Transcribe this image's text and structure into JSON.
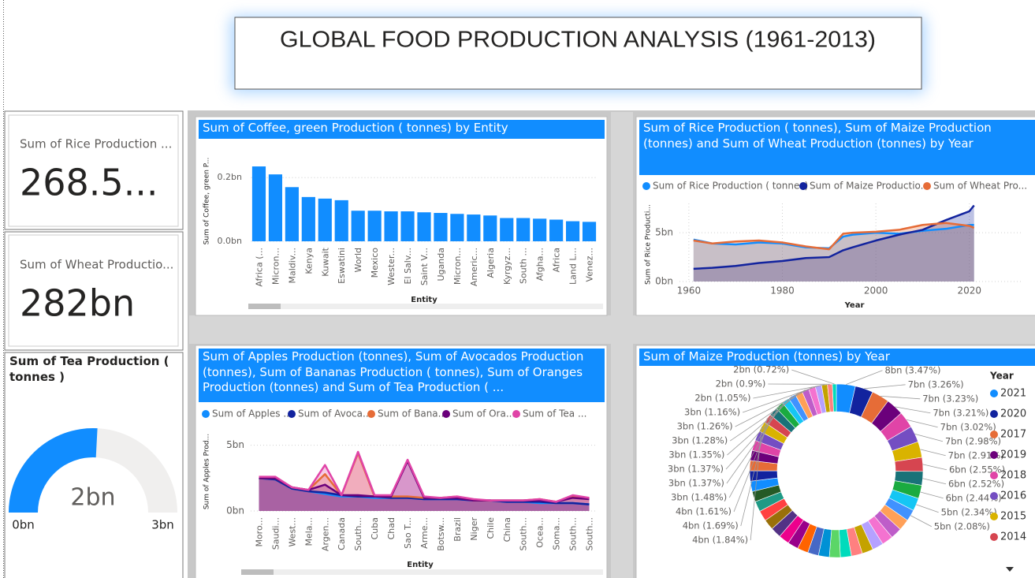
{
  "header": {
    "title": "GLOBAL FOOD PRODUCTION ANALYSIS (1961-2013)"
  },
  "cards": [
    {
      "label": "Sum of Rice Production ...",
      "value": "268.5..."
    },
    {
      "label": "Sum of Wheat Productio...",
      "value": "282bn"
    }
  ],
  "chart_data": [
    {
      "type": "gauge",
      "title": "Sum of Tea Production ( tonnes )",
      "values": [
        1.55
      ],
      "value_labels": [
        "2bn"
      ],
      "ylim": [
        0,
        3
      ],
      "yticks": [
        {
          "value": 0,
          "label": "0bn"
        },
        {
          "value": 3,
          "label": "3bn"
        }
      ],
      "color": "#118dff",
      "track_color": "#f0efee"
    },
    {
      "type": "bar",
      "title": "Sum of Coffee, green Production ( tonnes) by Entity",
      "y_label": "Sum of Coffee, green P...",
      "x_label": "Entity",
      "categories": [
        "Africa (...",
        "Micron...",
        "Maldiv...",
        "Kenya",
        "Kuwait",
        "Eswatini",
        "World",
        "Mexico",
        "Wester...",
        "El Salv...",
        "Saint V...",
        "Uganda",
        "Micron...",
        "Americ...",
        "Algeria",
        "Kyrgyz...",
        "South ...",
        "Afgha...",
        "Africa",
        "Land L...",
        "Venez..."
      ],
      "values": [
        0.235,
        0.21,
        0.17,
        0.139,
        0.134,
        0.129,
        0.096,
        0.096,
        0.094,
        0.094,
        0.091,
        0.089,
        0.086,
        0.084,
        0.081,
        0.073,
        0.073,
        0.071,
        0.068,
        0.063,
        0.061
      ],
      "color": "#118dff",
      "ylim": [
        0,
        0.25
      ],
      "yticks": [
        {
          "value": 0,
          "label": "0.0bn"
        },
        {
          "value": 0.2,
          "label": "0.2bn"
        }
      ],
      "grid": true
    },
    {
      "type": "area",
      "title": "Sum of Rice Production ( tonnes), Sum of Maize Production (tonnes) and Sum of Wheat Production (tonnes) by Year",
      "y_label": "Sum of Rice Producti...",
      "x_label": "Year",
      "x": [
        1961,
        1965,
        1970,
        1975,
        1980,
        1985,
        1990,
        1993,
        1995,
        2000,
        2005,
        2010,
        2015,
        2020,
        2021
      ],
      "series": [
        {
          "name": "Sum of Rice  Production ( tonnes)",
          "color": "#118dff",
          "values": [
            4.3,
            3.9,
            3.8,
            4.0,
            3.9,
            3.5,
            3.4,
            4.6,
            4.8,
            5.0,
            4.9,
            5.2,
            5.4,
            5.8,
            5.8
          ]
        },
        {
          "name": "Sum of Maize Productio...",
          "color": "#12239e",
          "values": [
            1.3,
            1.4,
            1.6,
            1.9,
            2.1,
            2.4,
            2.5,
            3.2,
            3.5,
            4.2,
            4.8,
            5.3,
            6.3,
            7.2,
            7.8
          ]
        },
        {
          "name": "Sum of Wheat Pro...",
          "color": "#e66c37",
          "values": [
            4.2,
            3.9,
            4.1,
            4.2,
            4.0,
            3.6,
            3.3,
            4.9,
            5.0,
            5.1,
            5.3,
            5.8,
            6.0,
            5.7,
            5.5
          ]
        }
      ],
      "xlim": [
        1958,
        2031
      ],
      "xticks": [
        1960,
        1980,
        2000,
        2020
      ],
      "ylim": [
        0,
        8
      ],
      "yticks": [
        {
          "value": 0,
          "label": "0bn"
        },
        {
          "value": 5,
          "label": "5bn"
        }
      ],
      "grid": true
    },
    {
      "type": "area",
      "title": "Sum of Apples Production (tonnes), Sum of Avocados Production (tonnes), Sum of Bananas Production ( tonnes), Sum of Oranges Production (tonnes) and Sum of Tea Production ( ...",
      "y_label": "Sum of Apples Prod...",
      "x_label": "Entity",
      "categories": [
        "Moro...",
        "Saudi...",
        "West...",
        "Mela...",
        "Argen...",
        "Canada",
        "South...",
        "Cuba",
        "Chad",
        "Sao T...",
        "Arme...",
        "Botsw...",
        "Brazil",
        "Niger",
        "Chile",
        "China",
        "South...",
        "Ocea...",
        "Soma...",
        "South...",
        "South..."
      ],
      "series": [
        {
          "name": "Sum of Apples ...",
          "color": "#118dff",
          "values": [
            2.5,
            2.4,
            1.7,
            1.5,
            1.3,
            1.1,
            1.1,
            1.0,
            1.0,
            1.0,
            0.9,
            0.9,
            0.9,
            0.8,
            0.8,
            0.7,
            0.7,
            0.6,
            0.6,
            0.6,
            0.5
          ]
        },
        {
          "name": "Sum of Avoca...",
          "color": "#12239e",
          "values": [
            2.5,
            2.4,
            1.7,
            1.5,
            1.4,
            1.2,
            1.1,
            1.1,
            1.0,
            1.0,
            0.9,
            0.9,
            0.9,
            0.8,
            0.8,
            0.7,
            0.7,
            0.7,
            0.6,
            0.6,
            0.5
          ]
        },
        {
          "name": "Sum of Bana...",
          "color": "#e66c37",
          "values": [
            2.5,
            2.5,
            1.8,
            1.6,
            2.8,
            1.2,
            4.4,
            1.1,
            1.1,
            1.1,
            1.0,
            1.0,
            1.1,
            0.8,
            0.8,
            0.8,
            0.8,
            0.9,
            0.7,
            1.1,
            0.9
          ]
        },
        {
          "name": "Sum of Ora...",
          "color": "#6b007b",
          "values": [
            2.5,
            2.5,
            1.8,
            1.6,
            2.0,
            1.2,
            1.2,
            1.1,
            1.1,
            3.8,
            1.0,
            1.0,
            1.0,
            0.8,
            0.8,
            0.8,
            0.8,
            0.8,
            0.7,
            1.0,
            0.9
          ]
        },
        {
          "name": "Sum of Tea ...",
          "color": "#e044a7",
          "values": [
            2.6,
            2.6,
            1.8,
            1.6,
            3.5,
            1.2,
            4.5,
            1.2,
            1.2,
            3.9,
            1.1,
            1.0,
            1.1,
            0.9,
            0.8,
            0.8,
            0.8,
            0.9,
            0.7,
            1.2,
            1.0
          ]
        }
      ],
      "ylim": [
        0,
        6
      ],
      "yticks": [
        {
          "value": 0,
          "label": "0bn"
        },
        {
          "value": 5,
          "label": "5bn"
        }
      ],
      "grid": true
    },
    {
      "type": "donut",
      "title": "Sum of Maize Production (tonnes) by Year",
      "legend_title": "Year",
      "categories": [
        "2021",
        "2020",
        "2017",
        "2019",
        "2018",
        "2016",
        "2015",
        "2014",
        null,
        null,
        null,
        null,
        null,
        null,
        null,
        null,
        null,
        null,
        null,
        null,
        null,
        null,
        null,
        null,
        null,
        null,
        null,
        null,
        null,
        null,
        null,
        null,
        null,
        null,
        null,
        null,
        null,
        null,
        null,
        null,
        null,
        null,
        null,
        null,
        null,
        null,
        null,
        null,
        null
      ],
      "values": [
        3.47,
        3.26,
        3.23,
        3.21,
        3.02,
        2.98,
        2.91,
        2.55,
        2.52,
        2.44,
        2.34,
        2.08,
        2.07,
        2.06,
        2.05,
        2.04,
        2.03,
        2.02,
        2.01,
        2.0,
        1.99,
        1.98,
        1.97,
        1.96,
        1.95,
        1.94,
        1.93,
        1.92,
        1.91,
        1.9,
        1.89,
        1.88,
        1.87,
        1.86,
        1.86,
        1.85,
        1.84,
        1.69,
        1.61,
        1.48,
        1.37,
        1.37,
        1.35,
        1.28,
        1.26,
        1.16,
        1.05,
        0.9,
        0.72
      ],
      "value_labels": [
        "8bn (3.47%)",
        "7bn (3.26%)",
        "7bn (3.23%)",
        "7bn (3.21%)",
        "7bn (3.02%)",
        "7bn (2.98%)",
        "7bn (2.91%)",
        "6bn (2.55%)",
        "6bn (2.52%)",
        "6bn (2.44%)",
        "5bn (2.34%)",
        "5bn (2.08%)",
        null,
        null,
        null,
        null,
        null,
        null,
        null,
        null,
        null,
        null,
        null,
        null,
        null,
        null,
        null,
        null,
        null,
        null,
        null,
        null,
        null,
        null,
        null,
        null,
        "4bn (1.84%)",
        "4bn (1.69%)",
        "4bn (1.61%)",
        "3bn (1.48%)",
        "3bn (1.37%)",
        "3bn (1.37%)",
        "3bn (1.35%)",
        "3bn (1.28%)",
        "3bn (1.26%)",
        "3bn (1.16%)",
        "2bn (1.05%)",
        "2bn (0.9%)",
        "2bn (0.72%)"
      ],
      "colors": [
        "#118dff",
        "#12239e",
        "#e66c37",
        "#6b007b",
        "#e044a7",
        "#744ec2",
        "#d9b300",
        "#d64550",
        "#197278",
        "#1aab40",
        "#15c6f4",
        "#4092ff",
        "#ffa058",
        "#be5dc9",
        "#f472d0",
        "#b5a1ff",
        "#c4a200",
        "#ff8080",
        "#00dbbc",
        "#5bd667",
        "#0091d5",
        "#4668c5",
        "#ff6300",
        "#99008a",
        "#ec008c",
        "#533285",
        "#99700a",
        "#ff4141",
        "#1f9a85",
        "#255a26"
      ]
    }
  ]
}
